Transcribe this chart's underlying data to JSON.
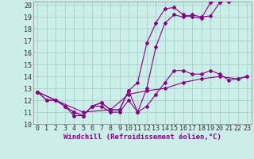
{
  "background_color": "#cceee8",
  "grid_color": "#aad4ce",
  "line_color": "#880088",
  "xlim": [
    -0.5,
    23.5
  ],
  "ylim": [
    10,
    20.3
  ],
  "xlabel": "Windchill (Refroidissement éolien,°C)",
  "xlabel_fontsize": 6.5,
  "xticks": [
    0,
    1,
    2,
    3,
    4,
    5,
    6,
    7,
    8,
    9,
    10,
    11,
    12,
    13,
    14,
    15,
    16,
    17,
    18,
    19,
    20,
    21,
    22,
    23
  ],
  "yticks": [
    10,
    11,
    12,
    13,
    14,
    15,
    16,
    17,
    18,
    19,
    20
  ],
  "tick_fontsize": 6,
  "series": [
    {
      "x": [
        0,
        1,
        2,
        3,
        4,
        5,
        6,
        7,
        8,
        9,
        10,
        11,
        12,
        13,
        14,
        15,
        16,
        17,
        18,
        19,
        20,
        21
      ],
      "y": [
        12.7,
        12.0,
        12.0,
        11.5,
        11.0,
        10.7,
        11.5,
        11.8,
        11.2,
        11.2,
        12.8,
        13.5,
        16.8,
        18.5,
        19.7,
        19.8,
        19.2,
        19.0,
        18.9,
        20.2,
        20.5,
        20.3
      ]
    },
    {
      "x": [
        0,
        1,
        2,
        3,
        4,
        5,
        6,
        7,
        8,
        9,
        10,
        11,
        12,
        13,
        14,
        15,
        16,
        17,
        18,
        19,
        20,
        21
      ],
      "y": [
        12.7,
        12.0,
        12.0,
        11.5,
        11.0,
        10.7,
        11.5,
        11.8,
        11.2,
        11.2,
        12.8,
        11.0,
        13.0,
        16.5,
        18.5,
        19.2,
        19.0,
        19.2,
        19.0,
        19.1,
        20.2,
        20.5
      ]
    },
    {
      "x": [
        0,
        2,
        3,
        4,
        5,
        6,
        7,
        8,
        9,
        10,
        11,
        12,
        13,
        14,
        15,
        16,
        17,
        18,
        19,
        20,
        21,
        22,
        23
      ],
      "y": [
        12.7,
        12.0,
        11.5,
        10.7,
        10.7,
        11.5,
        11.5,
        11.0,
        11.0,
        12.0,
        11.0,
        11.5,
        12.5,
        13.5,
        14.5,
        14.5,
        14.2,
        14.2,
        14.5,
        14.2,
        13.7,
        13.8,
        14.0
      ]
    },
    {
      "x": [
        0,
        2,
        5,
        8,
        10,
        12,
        14,
        16,
        18,
        20,
        22,
        23
      ],
      "y": [
        12.7,
        12.0,
        11.0,
        11.2,
        12.5,
        12.8,
        13.0,
        13.5,
        13.8,
        14.0,
        13.8,
        14.0
      ]
    }
  ]
}
